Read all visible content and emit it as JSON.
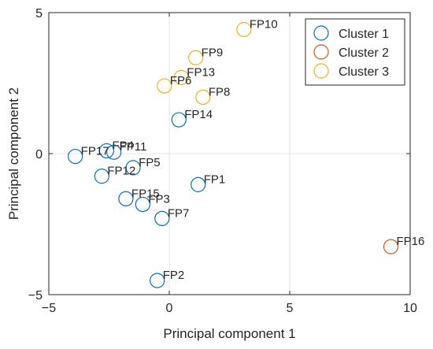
{
  "chart_data": {
    "type": "scatter",
    "xlabel": "Principal component 1",
    "ylabel": "Principal component 2",
    "xlim": [
      -5,
      10
    ],
    "ylim": [
      -5,
      5
    ],
    "xticks": [
      -5,
      0,
      5,
      10
    ],
    "yticks": [
      -5,
      0,
      5
    ],
    "xtick_labels": [
      "−5",
      "0",
      "5",
      "10"
    ],
    "ytick_labels": [
      "−5",
      "0",
      "5"
    ],
    "grid": true,
    "legend_position": "top-right",
    "marker": "open-circle",
    "series": [
      {
        "name": "Cluster 1",
        "color": "#0072BD",
        "points": [
          {
            "label": "FP17",
            "x": -3.9,
            "y": -0.1
          },
          {
            "label": "FP4",
            "x": -2.6,
            "y": 0.1
          },
          {
            "label": "FP11",
            "x": -2.3,
            "y": 0.05
          },
          {
            "label": "FP12",
            "x": -2.8,
            "y": -0.8
          },
          {
            "label": "FP5",
            "x": -1.5,
            "y": -0.5
          },
          {
            "label": "FP15",
            "x": -1.8,
            "y": -1.6
          },
          {
            "label": "FP3",
            "x": -1.1,
            "y": -1.8
          },
          {
            "label": "FP7",
            "x": -0.3,
            "y": -2.3
          },
          {
            "label": "FP1",
            "x": 1.2,
            "y": -1.1
          },
          {
            "label": "FP14",
            "x": 0.4,
            "y": 1.2
          },
          {
            "label": "FP2",
            "x": -0.5,
            "y": -4.5
          }
        ]
      },
      {
        "name": "Cluster 2",
        "color": "#D95319",
        "points": [
          {
            "label": "FP16",
            "x": 9.2,
            "y": -3.3
          }
        ]
      },
      {
        "name": "Cluster 3",
        "color": "#EDB120",
        "points": [
          {
            "label": "FP10",
            "x": 3.1,
            "y": 4.4
          },
          {
            "label": "FP9",
            "x": 1.1,
            "y": 3.4
          },
          {
            "label": "FP13",
            "x": 0.5,
            "y": 2.7
          },
          {
            "label": "FP6",
            "x": -0.2,
            "y": 2.4
          },
          {
            "label": "FP8",
            "x": 1.4,
            "y": 2.0
          }
        ]
      }
    ]
  }
}
